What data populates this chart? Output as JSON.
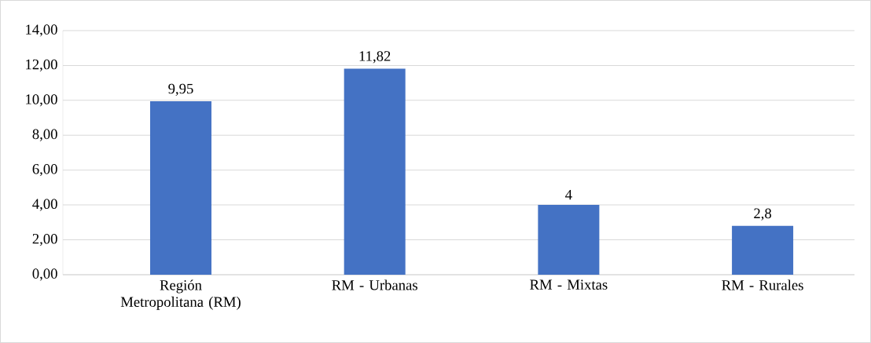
{
  "chart_data": {
    "type": "bar",
    "categories": [
      "Región Metropolitana (RM)",
      "RM - Urbanas",
      "RM - Mixtas",
      "RM - Rurales"
    ],
    "values": [
      9.95,
      11.82,
      4,
      2.8
    ],
    "value_labels": [
      "9,95",
      "11,82",
      "4",
      "2,8"
    ],
    "color": "#4472c4",
    "ylim": [
      0,
      14
    ],
    "yticks": [
      {
        "value": 0,
        "label": "0,00"
      },
      {
        "value": 2,
        "label": "2,00"
      },
      {
        "value": 4,
        "label": "4,00"
      },
      {
        "value": 6,
        "label": "6,00"
      },
      {
        "value": 8,
        "label": "8,00"
      },
      {
        "value": 10,
        "label": "10,00"
      },
      {
        "value": 12,
        "label": "12,00"
      },
      {
        "value": 14,
        "label": "14,00"
      }
    ],
    "grid": "y"
  }
}
